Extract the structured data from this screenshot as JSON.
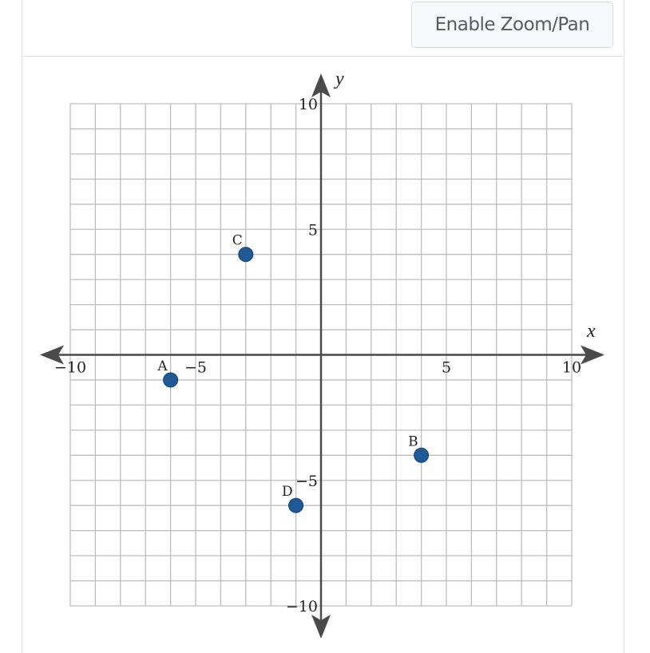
{
  "toolbar": {
    "zoom_button_label": "Enable Zoom/Pan"
  },
  "chart_data": {
    "type": "scatter",
    "title": "",
    "xlabel": "x",
    "ylabel": "y",
    "xlim": [
      -10,
      10
    ],
    "ylim": [
      -10,
      10
    ],
    "grid": true,
    "grid_step": 1,
    "x_ticks": [
      -10,
      -5,
      5,
      10
    ],
    "y_ticks": [
      10,
      5,
      -5,
      -10
    ],
    "x_tick_labels": [
      "−10",
      "−5",
      "5",
      "10"
    ],
    "y_tick_labels": [
      "10",
      "5",
      "−5",
      "−10"
    ],
    "points": [
      {
        "label": "A",
        "x": -6,
        "y": -1
      },
      {
        "label": "B",
        "x": 4,
        "y": -4
      },
      {
        "label": "C",
        "x": -3,
        "y": 4
      },
      {
        "label": "D",
        "x": -1,
        "y": -6
      }
    ],
    "point_color": "#1f5a96"
  }
}
